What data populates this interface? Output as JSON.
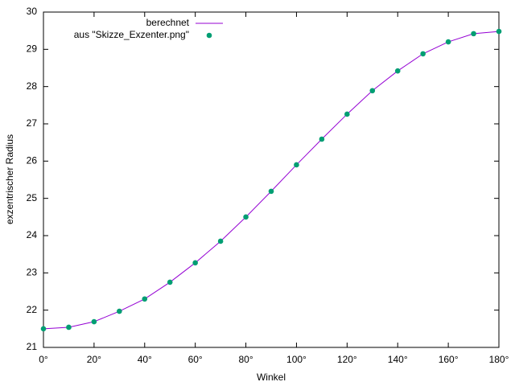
{
  "chart_data": {
    "type": "line",
    "x_label": "Winkel",
    "y_label": "exzentrischer Radius",
    "x": [
      0,
      10,
      20,
      30,
      40,
      50,
      60,
      70,
      80,
      90,
      100,
      110,
      120,
      130,
      140,
      150,
      160,
      170,
      180
    ],
    "series": [
      {
        "name": "berechnet",
        "color": "#9400d3",
        "style": "line",
        "values": [
          21.5,
          21.54,
          21.69,
          21.97,
          22.3,
          22.75,
          23.27,
          23.85,
          24.5,
          25.19,
          25.9,
          26.59,
          27.26,
          27.89,
          28.42,
          28.88,
          29.2,
          29.42,
          29.48
        ]
      },
      {
        "name": "aus \"Skizze_Exzenter.png\"",
        "color": "#009e73",
        "style": "points",
        "values": [
          21.5,
          21.54,
          21.69,
          21.97,
          22.3,
          22.75,
          23.27,
          23.85,
          24.5,
          25.19,
          25.9,
          26.59,
          27.26,
          27.89,
          28.42,
          28.88,
          29.2,
          29.42,
          29.48
        ]
      }
    ],
    "xlim": [
      0,
      180
    ],
    "xticks": [
      {
        "value": 0,
        "label": "0°"
      },
      {
        "value": 20,
        "label": "20°"
      },
      {
        "value": 40,
        "label": "40°"
      },
      {
        "value": 60,
        "label": "60°"
      },
      {
        "value": 80,
        "label": "80°"
      },
      {
        "value": 100,
        "label": "100°"
      },
      {
        "value": 120,
        "label": "120°"
      },
      {
        "value": 140,
        "label": "140°"
      },
      {
        "value": 160,
        "label": "160°"
      },
      {
        "value": 180,
        "label": "180°"
      }
    ],
    "ylim": [
      21,
      30
    ],
    "yticks": [
      21,
      22,
      23,
      24,
      25,
      26,
      27,
      28,
      29,
      30
    ],
    "grid": false,
    "legend": "top-center"
  }
}
